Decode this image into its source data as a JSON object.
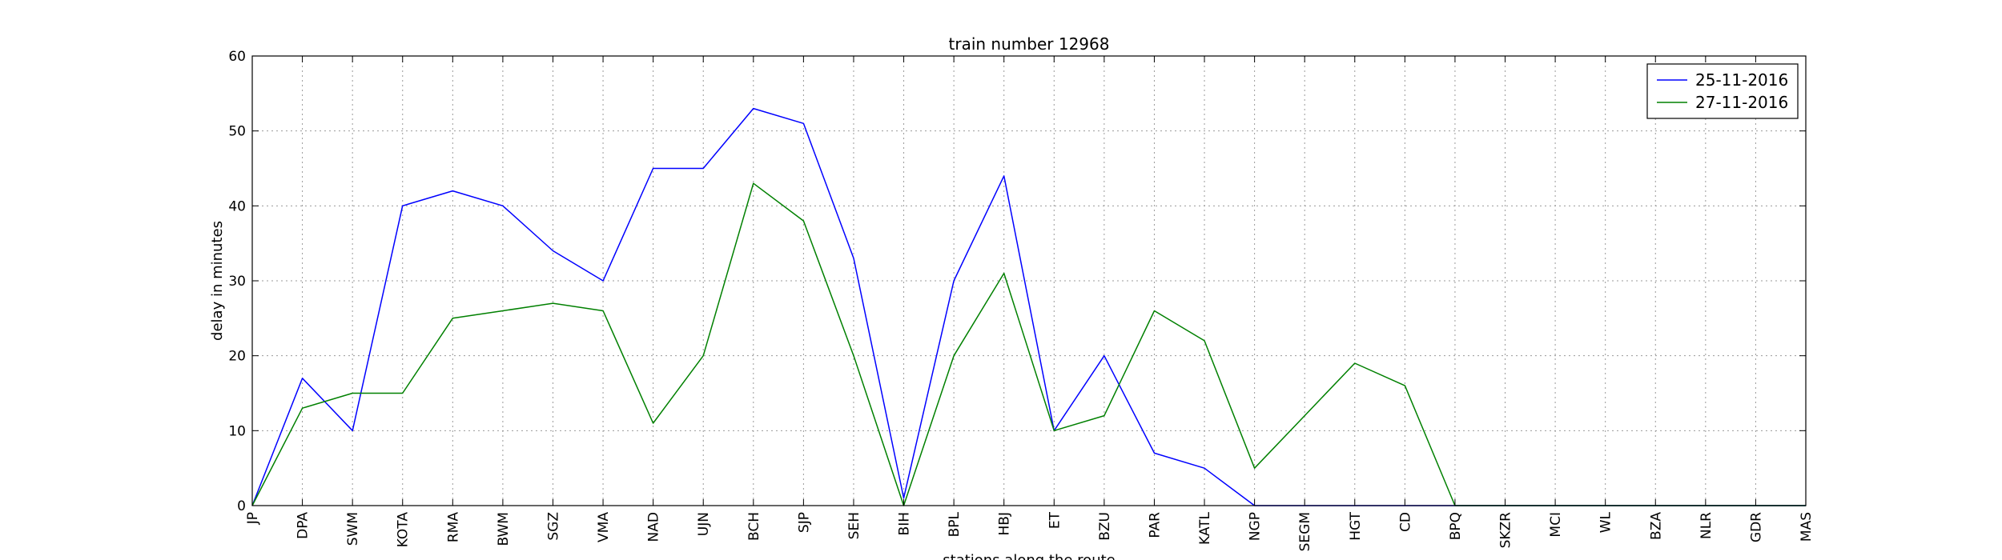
{
  "chart_data": {
    "type": "line",
    "title": "train number 12968",
    "xlabel": "stations along the route",
    "ylabel": "delay in minutes",
    "ylim": [
      0,
      60
    ],
    "yticks": [
      0,
      10,
      20,
      30,
      40,
      50,
      60
    ],
    "grid": true,
    "legend_position": "top-right",
    "categories": [
      "JP",
      "DPA",
      "SWM",
      "KOTA",
      "RMA",
      "BWM",
      "SGZ",
      "VMA",
      "NAD",
      "UJN",
      "BCH",
      "SJP",
      "SEH",
      "BIH",
      "BPL",
      "HBJ",
      "ET",
      "BZU",
      "PAR",
      "KATL",
      "NGP",
      "SEGM",
      "HGT",
      "CD",
      "BPQ",
      "SKZR",
      "MCI",
      "WL",
      "BZA",
      "NLR",
      "GDR",
      "MAS"
    ],
    "series": [
      {
        "name": "25-11-2016",
        "color": "#0000ff",
        "values": [
          0,
          17,
          10,
          40,
          42,
          40,
          34,
          30,
          45,
          45,
          53,
          51,
          33,
          1,
          30,
          44,
          10,
          20,
          7,
          5,
          0,
          0,
          0,
          0,
          0,
          0,
          0,
          0,
          0,
          0,
          0,
          0
        ]
      },
      {
        "name": "27-11-2016",
        "color": "#008000",
        "values": [
          0,
          13,
          15,
          15,
          25,
          26,
          27,
          26,
          11,
          20,
          43,
          38,
          20,
          0,
          20,
          31,
          10,
          12,
          26,
          22,
          5,
          12,
          19,
          16,
          0,
          0,
          0,
          0,
          0,
          0,
          0,
          0
        ]
      }
    ]
  }
}
